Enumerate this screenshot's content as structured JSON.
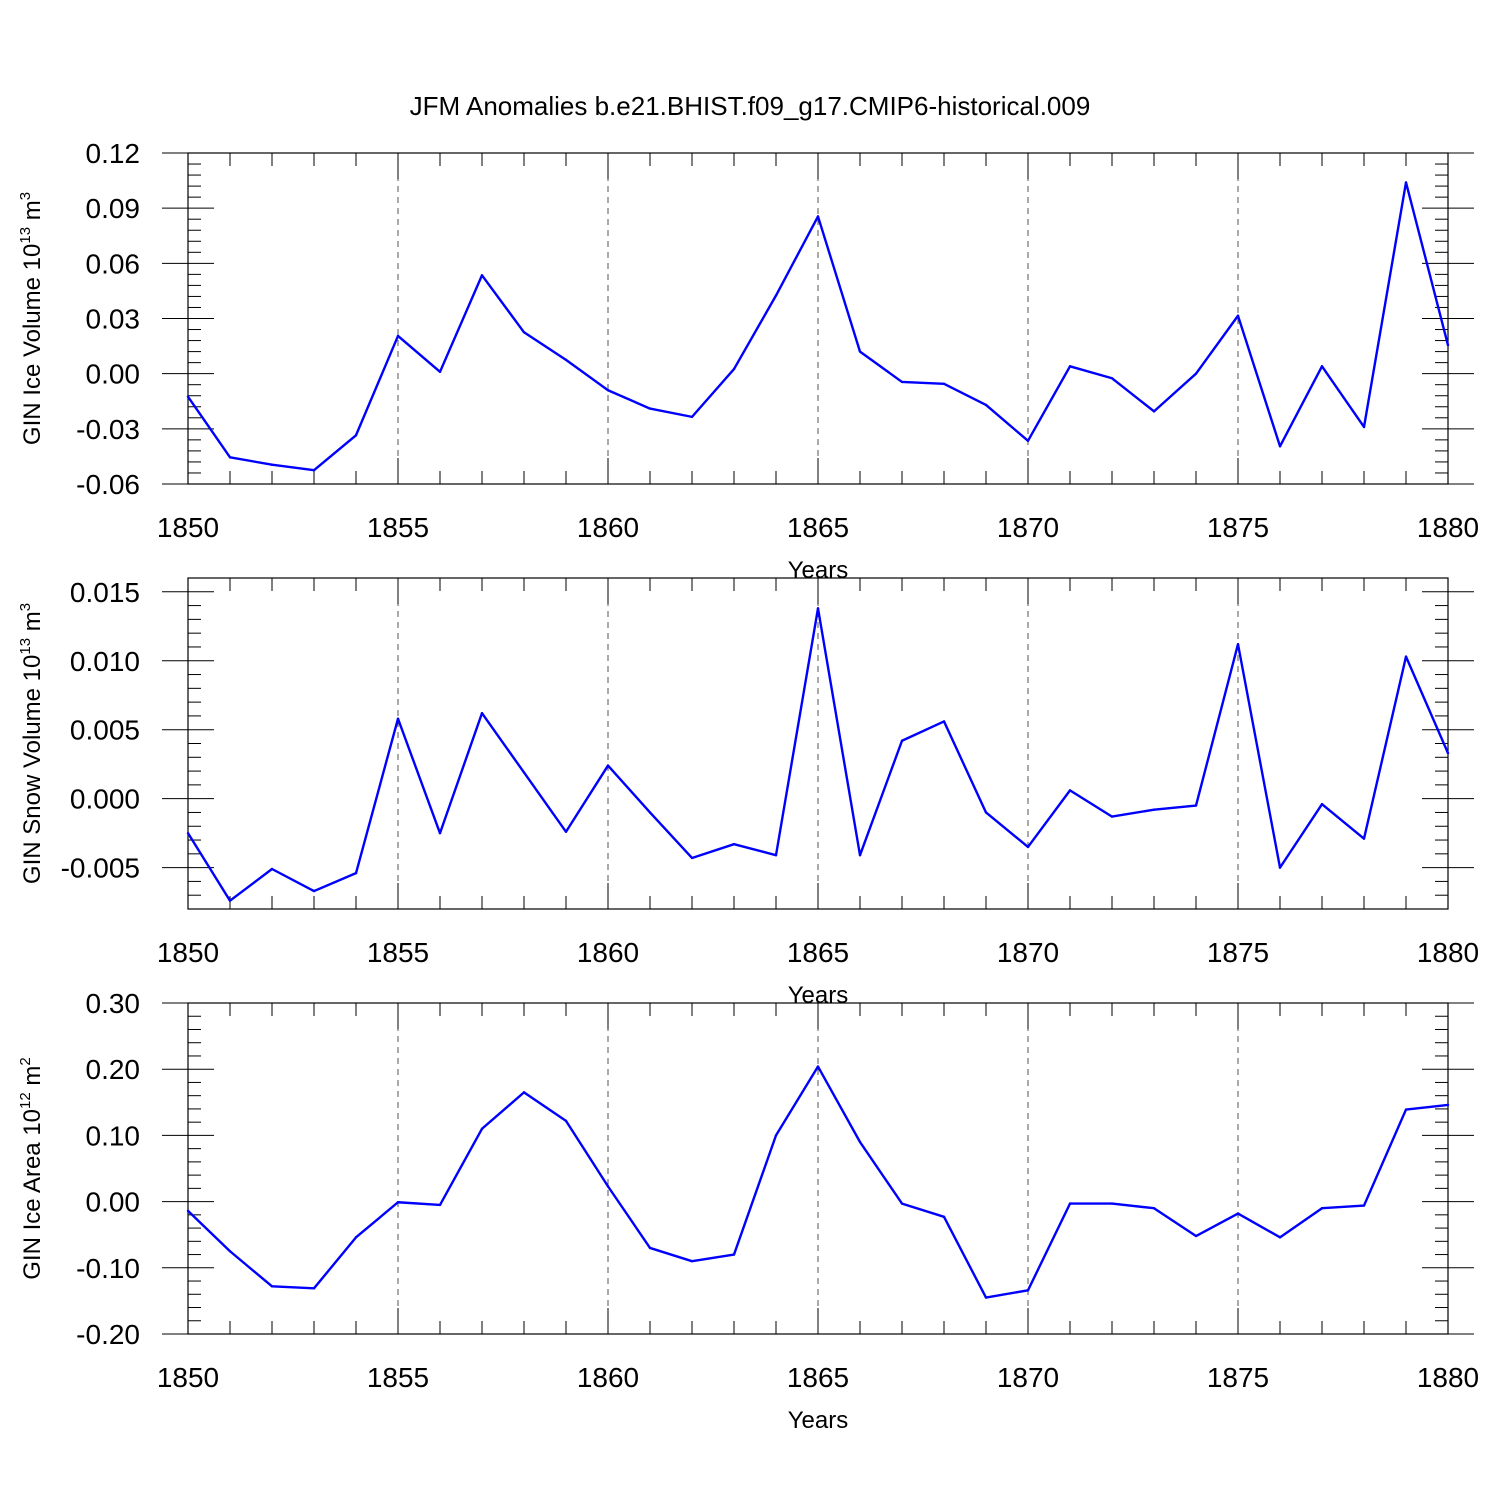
{
  "title": "JFM Anomalies b.e21.BHIST.f09_g17.CMIP6-historical.009",
  "colors": {
    "series": "#0000ff",
    "frame": "#000000",
    "grid": "#555555"
  },
  "chart_data": [
    {
      "type": "line",
      "xlabel": "Years",
      "ylabel": "GIN Ice Volume 10",
      "ylabel_exp": "13",
      "ylabel_unit": " m",
      "ylabel_unit_exp": "3",
      "xlim": [
        1850,
        1880
      ],
      "ylim": [
        -0.06,
        0.12
      ],
      "xticks": [
        1850,
        1855,
        1860,
        1865,
        1870,
        1875,
        1880
      ],
      "yticks": [
        -0.06,
        -0.03,
        0.0,
        0.03,
        0.06,
        0.09,
        0.12
      ],
      "ytick_labels": [
        "-0.06",
        "-0.03",
        "0.00",
        "0.03",
        "0.06",
        "0.09",
        "0.12"
      ],
      "ref_lines": [
        0.12
      ],
      "grid": "dashed vertical at major x ticks",
      "x": [
        1850,
        1851,
        1852,
        1853,
        1854,
        1855,
        1856,
        1857,
        1858,
        1859,
        1860,
        1861,
        1862,
        1863,
        1864,
        1865,
        1866,
        1867,
        1868,
        1869,
        1870,
        1871,
        1872,
        1873,
        1874,
        1875,
        1876,
        1877,
        1878,
        1879,
        1880
      ],
      "values": [
        -0.0125,
        -0.0455,
        -0.0495,
        -0.0525,
        -0.0335,
        0.0205,
        0.001,
        0.0535,
        0.0225,
        0.0075,
        -0.009,
        -0.019,
        -0.0235,
        0.0025,
        0.0425,
        0.0855,
        0.012,
        -0.0045,
        -0.0055,
        -0.017,
        -0.0365,
        0.004,
        -0.0025,
        -0.0205,
        0.0,
        0.0315,
        -0.0395,
        0.004,
        -0.029,
        0.104,
        0.0155
      ]
    },
    {
      "type": "line",
      "xlabel": "Years",
      "ylabel": "GIN Snow Volume 10",
      "ylabel_exp": "13",
      "ylabel_unit": " m",
      "ylabel_unit_exp": "3",
      "xlim": [
        1850,
        1880
      ],
      "ylim": [
        -0.008,
        0.016
      ],
      "xticks": [
        1850,
        1855,
        1860,
        1865,
        1870,
        1875,
        1880
      ],
      "yticks": [
        -0.005,
        0.0,
        0.005,
        0.01,
        0.015
      ],
      "ytick_labels": [
        "-0.005",
        "0.000",
        "0.005",
        "0.010",
        "0.015"
      ],
      "ref_lines": [],
      "grid": "dashed vertical at major x ticks",
      "x": [
        1850,
        1851,
        1852,
        1853,
        1854,
        1855,
        1856,
        1857,
        1858,
        1859,
        1860,
        1861,
        1862,
        1863,
        1864,
        1865,
        1866,
        1867,
        1868,
        1869,
        1870,
        1871,
        1872,
        1873,
        1874,
        1875,
        1876,
        1877,
        1878,
        1879,
        1880
      ],
      "values": [
        -0.0025,
        -0.0074,
        -0.0051,
        -0.0067,
        -0.0054,
        0.0058,
        -0.0025,
        0.0062,
        0.0019,
        -0.0024,
        0.0024,
        -0.001,
        -0.0043,
        -0.0033,
        -0.0041,
        0.0138,
        -0.0041,
        0.0042,
        0.0056,
        -0.001,
        -0.0035,
        0.0006,
        -0.0013,
        -0.0008,
        -0.0005,
        0.0112,
        -0.005,
        -0.0004,
        -0.0029,
        0.0103,
        0.0033
      ]
    },
    {
      "type": "line",
      "xlabel": "Years",
      "ylabel": "GIN Ice Area 10",
      "ylabel_exp": "12",
      "ylabel_unit": " m",
      "ylabel_unit_exp": "2",
      "xlim": [
        1850,
        1880
      ],
      "ylim": [
        -0.2,
        0.3
      ],
      "xticks": [
        1850,
        1855,
        1860,
        1865,
        1870,
        1875,
        1880
      ],
      "yticks": [
        -0.2,
        -0.1,
        0.0,
        0.1,
        0.2,
        0.3
      ],
      "ytick_labels": [
        "-0.20",
        "-0.10",
        "0.00",
        "0.10",
        "0.20",
        "0.30"
      ],
      "ref_lines": [
        0.3
      ],
      "grid": "dashed vertical at major x ticks",
      "x": [
        1850,
        1851,
        1852,
        1853,
        1854,
        1855,
        1856,
        1857,
        1858,
        1859,
        1860,
        1861,
        1862,
        1863,
        1864,
        1865,
        1866,
        1867,
        1868,
        1869,
        1870,
        1871,
        1872,
        1873,
        1874,
        1875,
        1876,
        1877,
        1878,
        1879,
        1880
      ],
      "values": [
        -0.014,
        -0.075,
        -0.128,
        -0.131,
        -0.054,
        -0.001,
        -0.005,
        0.11,
        0.165,
        0.122,
        0.023,
        -0.07,
        -0.09,
        -0.08,
        0.1,
        0.204,
        0.09,
        -0.003,
        -0.023,
        -0.145,
        -0.134,
        -0.003,
        -0.003,
        -0.01,
        -0.052,
        -0.018,
        -0.054,
        -0.01,
        -0.006,
        0.139,
        0.146
      ]
    }
  ]
}
